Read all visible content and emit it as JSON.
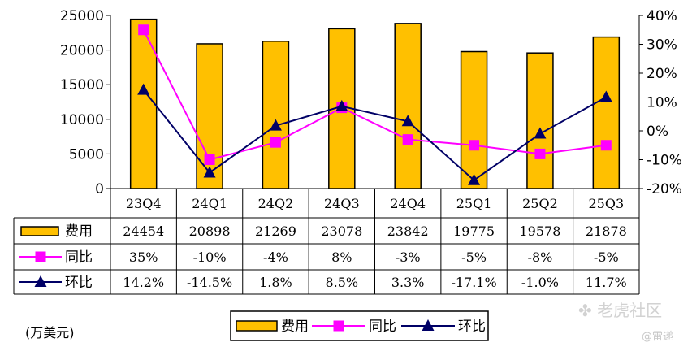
{
  "chart_data": {
    "type": "bar",
    "categories": [
      "23Q4",
      "24Q1",
      "24Q2",
      "24Q3",
      "24Q4",
      "25Q1",
      "25Q2",
      "25Q3"
    ],
    "series": [
      {
        "name": "费用",
        "type": "bar",
        "axis": "left",
        "color": "#FFC000",
        "values": [
          24454,
          20898,
          21269,
          23078,
          23842,
          19775,
          19578,
          21878
        ],
        "labels": [
          "24454",
          "20898",
          "21269",
          "23078",
          "23842",
          "19775",
          "19578",
          "21878"
        ]
      },
      {
        "name": "同比",
        "type": "line",
        "axis": "right",
        "color": "#FF00FF",
        "marker": "square",
        "values": [
          35,
          -10,
          -4,
          8,
          -3,
          -5,
          -8,
          -5
        ],
        "labels": [
          "35%",
          "-10%",
          "-4%",
          "8%",
          "-3%",
          "-5%",
          "-8%",
          "-5%"
        ]
      },
      {
        "name": "环比",
        "type": "line",
        "axis": "right",
        "color": "#000066",
        "marker": "triangle",
        "values": [
          14.2,
          -14.5,
          1.8,
          8.5,
          3.3,
          -17.1,
          -1.0,
          11.7
        ],
        "labels": [
          "14.2%",
          "-14.5%",
          "1.8%",
          "8.5%",
          "3.3%",
          "-17.1%",
          "-1.0%",
          "11.7%"
        ]
      }
    ],
    "y_left": {
      "min": 0,
      "max": 25000,
      "ticks": [
        "0",
        "5000",
        "10000",
        "15000",
        "20000",
        "25000"
      ]
    },
    "y_right": {
      "min": -20,
      "max": 40,
      "ticks": [
        "-20%",
        "-10%",
        "0%",
        "10%",
        "20%",
        "30%",
        "40%"
      ]
    },
    "legend_placement": "bottom-center",
    "data_table": true,
    "grid": false
  },
  "unit_note": "(万美元)",
  "watermark": {
    "text": "老虎社区",
    "sub": "@雷递"
  }
}
